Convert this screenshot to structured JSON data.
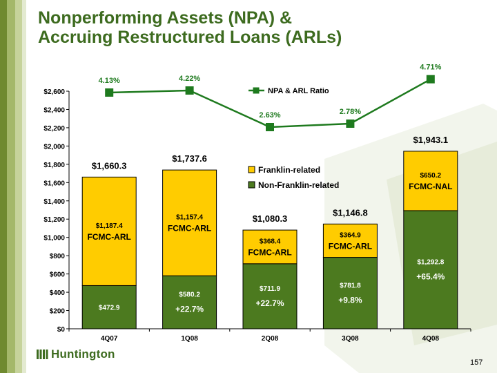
{
  "title_line1": "Nonperforming Assets (NPA) &",
  "title_line2": "Accruing Restructured Loans (ARLs)",
  "logo_text": "Huntington",
  "page_number": "157",
  "colors": {
    "franklin": "#ffcc00",
    "non_franklin": "#4c7a1f",
    "ratio_line": "#1e7a1e",
    "title": "#3d6b1f"
  },
  "chart_data": {
    "type": "bar",
    "stacked": true,
    "categories": [
      "4Q07",
      "1Q08",
      "2Q08",
      "3Q08",
      "4Q08"
    ],
    "series": [
      {
        "name": "Non-Franklin-related",
        "values": [
          472.9,
          580.2,
          711.9,
          781.8,
          1292.8
        ],
        "labels": [
          "$472.9",
          "$580.2",
          "$711.9",
          "$781.8",
          "$1,292.8"
        ]
      },
      {
        "name": "Franklin-related",
        "values": [
          1187.4,
          1157.4,
          368.4,
          364.9,
          650.2
        ],
        "labels": [
          "$1,187.4",
          "$1,157.4",
          "$368.4",
          "$364.9",
          "$650.2"
        ],
        "tags": [
          "FCMC-ARL",
          "FCMC-ARL",
          "FCMC-ARL",
          "FCMC-ARL",
          "FCMC-NAL"
        ]
      }
    ],
    "totals": [
      "$1,660.3",
      "$1,737.6",
      "$1,080.3",
      "$1,146.8",
      "$1,943.1"
    ],
    "growth_labels": [
      "",
      "+22.7%",
      "+22.7%",
      "+9.8%",
      "+65.4%"
    ],
    "ratio_series": {
      "name": "NPA & ARL Ratio",
      "values": [
        4.13,
        4.22,
        2.63,
        2.78,
        4.71
      ],
      "labels": [
        "4.13%",
        "4.22%",
        "2.63%",
        "2.78%",
        "4.71%"
      ]
    },
    "ylim": [
      0,
      2600
    ],
    "yticks": [
      "$0",
      "$200",
      "$400",
      "$600",
      "$800",
      "$1,000",
      "$1,200",
      "$1,400",
      "$1,600",
      "$1,800",
      "$2,000",
      "$2,200",
      "$2,400",
      "$2,600"
    ],
    "legend": [
      "NPA & ARL Ratio",
      "Franklin-related",
      "Non-Franklin-related"
    ]
  }
}
